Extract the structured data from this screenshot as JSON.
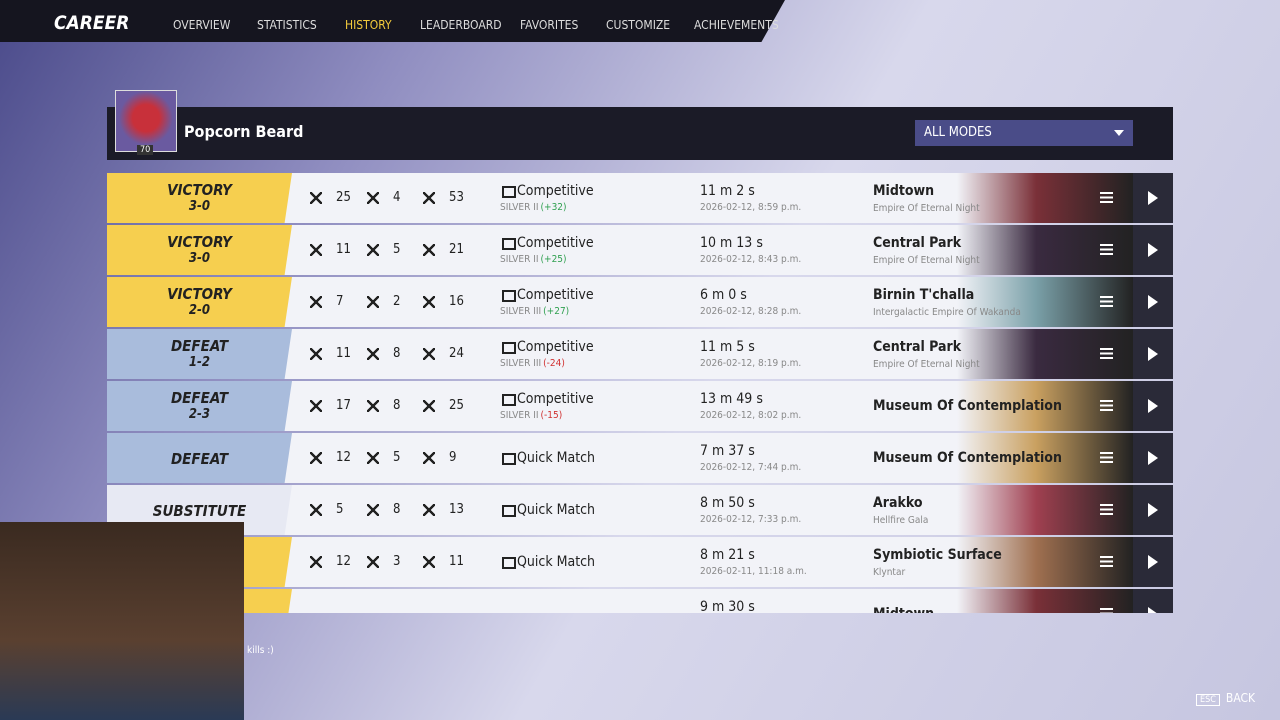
{
  "nav": {
    "title": "CAREER",
    "tabs": [
      "OVERVIEW",
      "STATISTICS",
      "HISTORY",
      "LEADERBOARD",
      "FAVORITES",
      "CUSTOMIZE",
      "ACHIEVEMENTS"
    ],
    "active_tab": 2
  },
  "profile": {
    "name": "Popcorn Beard",
    "level": 70
  },
  "filter": "ALL MODES",
  "matches": [
    {
      "result": "VICTORY",
      "score": "3-0",
      "kills": 25,
      "deaths": 4,
      "assists": 53,
      "mode": "Competitive",
      "rank": "SILVER II",
      "rank_change": "(+32)",
      "duration": "11 m 2 s",
      "date": "2026-02-12, 8:59 p.m.",
      "map": "Midtown",
      "map_subtitle": "Empire Of Eternal Night"
    },
    {
      "result": "VICTORY",
      "score": "3-0",
      "kills": 11,
      "deaths": 5,
      "assists": 21,
      "mode": "Competitive",
      "rank": "SILVER II",
      "rank_change": "(+25)",
      "duration": "10 m 13 s",
      "date": "2026-02-12, 8:43 p.m.",
      "map": "Central Park",
      "map_subtitle": "Empire Of Eternal Night"
    },
    {
      "result": "VICTORY",
      "score": "2-0",
      "kills": 7,
      "deaths": 2,
      "assists": 16,
      "mode": "Competitive",
      "rank": "SILVER III",
      "rank_change": "(+27)",
      "duration": "6 m 0 s",
      "date": "2026-02-12, 8:28 p.m.",
      "map": "Birnin T'challa",
      "map_subtitle": "Intergalactic Empire Of Wakanda"
    },
    {
      "result": "DEFEAT",
      "score": "1-2",
      "kills": 11,
      "deaths": 8,
      "assists": 24,
      "mode": "Competitive",
      "rank": "SILVER III",
      "rank_change": "(-24)",
      "duration": "11 m 5 s",
      "date": "2026-02-12, 8:19 p.m.",
      "map": "Central Park",
      "map_subtitle": "Empire Of Eternal Night"
    },
    {
      "result": "DEFEAT",
      "score": "2-3",
      "kills": 17,
      "deaths": 8,
      "assists": 25,
      "mode": "Competitive",
      "rank": "SILVER II",
      "rank_change": "(-15)",
      "duration": "13 m 49 s",
      "date": "2026-02-12, 8:02 p.m.",
      "map": "Museum Of Contemplation"
    },
    {
      "result": "DEFEAT",
      "kills": 12,
      "deaths": 5,
      "assists": 9,
      "mode": "Quick Match",
      "duration": "7 m 37 s",
      "date": "2026-02-12, 7:44 p.m.",
      "map": "Museum Of Contemplation"
    },
    {
      "result": "SUBSTITUTE",
      "kills": 5,
      "deaths": 8,
      "assists": 13,
      "mode": "Quick Match",
      "duration": "8 m 50 s",
      "date": "2026-02-12, 7:33 p.m.",
      "map": "Arakko",
      "map_subtitle": "Hellfire Gala"
    },
    {
      "kills": 12,
      "deaths": 3,
      "assists": 11,
      "mode": "Quick Match",
      "duration": "8 m 21 s",
      "date": "2026-02-11, 11:18 a.m.",
      "map": "Symbiotic Surface",
      "map_subtitle": "Klyntar"
    },
    {
      "duration": "9 m 30 s",
      "map": "Midtown"
    }
  ],
  "chat": "kills :)",
  "footer": {
    "key": "ESC",
    "label": "BACK"
  }
}
